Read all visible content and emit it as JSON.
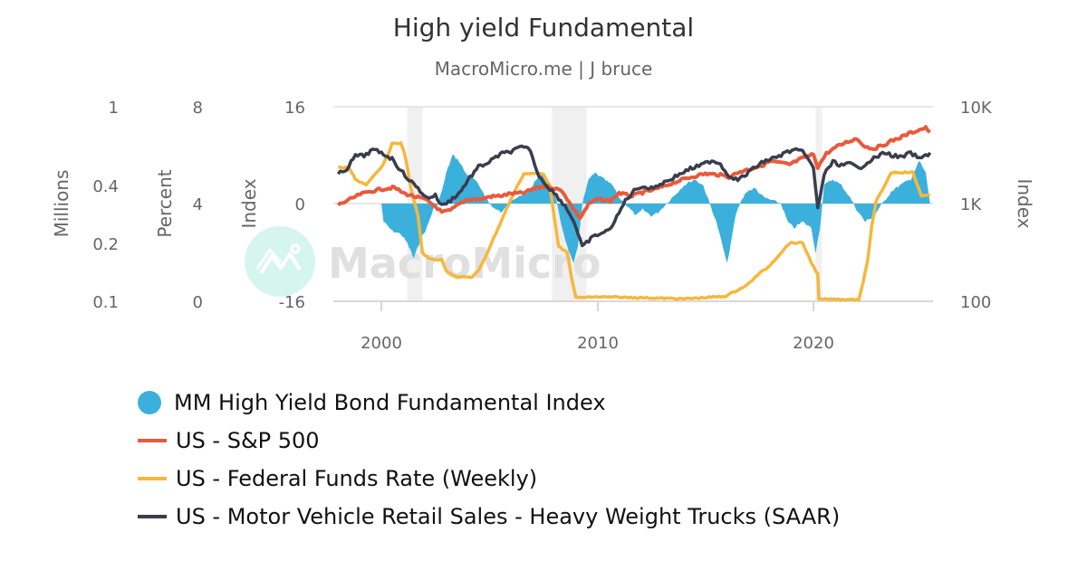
{
  "header": {
    "title": "High yield Fundamental",
    "subtitle": "MacroMicro.me | J bruce"
  },
  "watermark": {
    "text": "MacroMicro"
  },
  "axes": {
    "left1": {
      "title": "Millions",
      "ticks": [
        "1",
        "0.4",
        "0.2",
        "0.1"
      ]
    },
    "left2": {
      "title": "Percent",
      "ticks": [
        "8",
        "4",
        "0"
      ]
    },
    "left3": {
      "title": "Index",
      "ticks": [
        "16",
        "0",
        "-16"
      ]
    },
    "right": {
      "title": "Index",
      "ticks": [
        "10K",
        "1K",
        "100"
      ]
    },
    "x": {
      "ticks": [
        "2000",
        "2010",
        "2020"
      ]
    }
  },
  "legend": {
    "items": [
      {
        "label": "MM High Yield Bond Fundamental Index",
        "color": "#3cb0dc",
        "type": "dot"
      },
      {
        "label": "US - S&P 500",
        "color": "#e85a3c",
        "type": "line"
      },
      {
        "label": "US - Federal Funds Rate (Weekly)",
        "color": "#f5b83c",
        "type": "line"
      },
      {
        "label": "US - Motor Vehicle Retail Sales - Heavy Weight Trucks (SAAR)",
        "color": "#3a3d4d",
        "type": "line"
      }
    ]
  },
  "chart_data": {
    "type": "line",
    "title": "High yield Fundamental",
    "subtitle": "MacroMicro.me | J bruce",
    "xlabel": "",
    "x_range": [
      1998.0,
      2025.5
    ],
    "x_ticks": [
      2000,
      2010,
      2020
    ],
    "recession_bands": [
      [
        2001.2,
        2001.9
      ],
      [
        2007.9,
        2009.5
      ],
      [
        2020.1,
        2020.4
      ]
    ],
    "legend_position": "bottom",
    "grid": "horizontal",
    "series": [
      {
        "name": "MM High Yield Bond Fundamental Index",
        "type": "area",
        "color": "#3cb0dc",
        "axis": "Index (-16 to 16)",
        "ylim": [
          -16,
          16
        ],
        "points": [
          [
            2000.0,
            0
          ],
          [
            2000.1,
            -3
          ],
          [
            2000.5,
            -4.5
          ],
          [
            2000.9,
            -5
          ],
          [
            2001.2,
            -6.5
          ],
          [
            2001.5,
            -9
          ],
          [
            2001.8,
            -6
          ],
          [
            2002.1,
            -4
          ],
          [
            2002.4,
            -1
          ],
          [
            2002.6,
            0
          ],
          [
            2002.8,
            2
          ],
          [
            2003.0,
            5
          ],
          [
            2003.3,
            8
          ],
          [
            2003.6,
            7
          ],
          [
            2003.9,
            5
          ],
          [
            2004.3,
            4
          ],
          [
            2004.7,
            2
          ],
          [
            2005.0,
            0
          ],
          [
            2005.3,
            -1
          ],
          [
            2005.6,
            -1.5
          ],
          [
            2005.9,
            0.5
          ],
          [
            2006.3,
            1
          ],
          [
            2006.7,
            1.5
          ],
          [
            2007.0,
            3
          ],
          [
            2007.4,
            5
          ],
          [
            2007.7,
            4
          ],
          [
            2008.0,
            2
          ],
          [
            2008.3,
            -3
          ],
          [
            2008.6,
            -7
          ],
          [
            2008.9,
            -10
          ],
          [
            2009.1,
            -7
          ],
          [
            2009.3,
            0
          ],
          [
            2009.6,
            4
          ],
          [
            2009.9,
            5
          ],
          [
            2010.3,
            4
          ],
          [
            2010.7,
            3
          ],
          [
            2011.0,
            1
          ],
          [
            2011.4,
            -0.5
          ],
          [
            2011.8,
            -2
          ],
          [
            2012.1,
            -1
          ],
          [
            2012.5,
            -2
          ],
          [
            2012.8,
            -1.5
          ],
          [
            2013.2,
            0
          ],
          [
            2013.6,
            1.5
          ],
          [
            2014.0,
            3
          ],
          [
            2014.5,
            4
          ],
          [
            2014.9,
            3
          ],
          [
            2015.2,
            0
          ],
          [
            2015.5,
            -3
          ],
          [
            2015.8,
            -7
          ],
          [
            2016.0,
            -10
          ],
          [
            2016.2,
            -6
          ],
          [
            2016.4,
            -2
          ],
          [
            2016.6,
            0
          ],
          [
            2016.9,
            2
          ],
          [
            2017.3,
            2.5
          ],
          [
            2017.7,
            1
          ],
          [
            2018.1,
            0.5
          ],
          [
            2018.5,
            0
          ],
          [
            2018.8,
            -3
          ],
          [
            2019.1,
            -4
          ],
          [
            2019.5,
            -3
          ],
          [
            2019.9,
            -4
          ],
          [
            2020.1,
            -8
          ],
          [
            2020.3,
            -4
          ],
          [
            2020.5,
            3
          ],
          [
            2020.9,
            4
          ],
          [
            2021.3,
            3
          ],
          [
            2021.7,
            1
          ],
          [
            2022.0,
            -1
          ],
          [
            2022.4,
            -3
          ],
          [
            2022.8,
            -2
          ],
          [
            2023.2,
            0
          ],
          [
            2023.6,
            2
          ],
          [
            2024.0,
            3
          ],
          [
            2024.5,
            4
          ],
          [
            2024.9,
            7
          ],
          [
            2025.2,
            5
          ],
          [
            2025.4,
            0
          ]
        ]
      },
      {
        "name": "US - S&P 500",
        "type": "line",
        "color": "#e85a3c",
        "axis": "Index (log, 100 to 10K)",
        "ylim": [
          100,
          10000
        ],
        "points": [
          [
            1998.0,
            980
          ],
          [
            1998.5,
            1100
          ],
          [
            1999.0,
            1250
          ],
          [
            1999.5,
            1350
          ],
          [
            2000.0,
            1420
          ],
          [
            2000.6,
            1480
          ],
          [
            2001.0,
            1300
          ],
          [
            2001.5,
            1200
          ],
          [
            2002.0,
            1120
          ],
          [
            2002.5,
            950
          ],
          [
            2002.8,
            820
          ],
          [
            2003.2,
            860
          ],
          [
            2003.6,
            1000
          ],
          [
            2004.0,
            1120
          ],
          [
            2004.6,
            1120
          ],
          [
            2005.0,
            1190
          ],
          [
            2005.6,
            1220
          ],
          [
            2006.0,
            1280
          ],
          [
            2006.6,
            1300
          ],
          [
            2007.0,
            1420
          ],
          [
            2007.5,
            1520
          ],
          [
            2007.9,
            1480
          ],
          [
            2008.4,
            1350
          ],
          [
            2008.8,
            950
          ],
          [
            2009.2,
            720
          ],
          [
            2009.6,
            1000
          ],
          [
            2010.0,
            1120
          ],
          [
            2010.6,
            1080
          ],
          [
            2011.0,
            1300
          ],
          [
            2011.6,
            1200
          ],
          [
            2012.0,
            1300
          ],
          [
            2012.6,
            1400
          ],
          [
            2013.0,
            1500
          ],
          [
            2013.6,
            1680
          ],
          [
            2014.0,
            1800
          ],
          [
            2014.6,
            1960
          ],
          [
            2015.0,
            2050
          ],
          [
            2015.7,
            1990
          ],
          [
            2016.1,
            1900
          ],
          [
            2016.6,
            2150
          ],
          [
            2017.0,
            2280
          ],
          [
            2017.6,
            2480
          ],
          [
            2018.0,
            2750
          ],
          [
            2018.9,
            2550
          ],
          [
            2019.4,
            2900
          ],
          [
            2020.0,
            3250
          ],
          [
            2020.2,
            2400
          ],
          [
            2020.6,
            3300
          ],
          [
            2021.0,
            3800
          ],
          [
            2021.5,
            4300
          ],
          [
            2022.0,
            4700
          ],
          [
            2022.4,
            3900
          ],
          [
            2022.8,
            3700
          ],
          [
            2023.2,
            4000
          ],
          [
            2023.6,
            4450
          ],
          [
            2024.0,
            4800
          ],
          [
            2024.5,
            5400
          ],
          [
            2025.0,
            5900
          ],
          [
            2025.2,
            6050
          ],
          [
            2025.4,
            5500
          ]
        ]
      },
      {
        "name": "US - Federal Funds Rate (Weekly)",
        "type": "line",
        "color": "#f5b83c",
        "axis": "Percent (0 to 8)",
        "ylim": [
          0,
          8
        ],
        "points": [
          [
            1998.0,
            5.5
          ],
          [
            1998.5,
            5.5
          ],
          [
            1998.8,
            5.0
          ],
          [
            1999.3,
            4.8
          ],
          [
            1999.7,
            5.2
          ],
          [
            2000.0,
            5.5
          ],
          [
            2000.3,
            6.0
          ],
          [
            2000.5,
            6.5
          ],
          [
            2000.9,
            6.5
          ],
          [
            2001.1,
            6.0
          ],
          [
            2001.4,
            4.5
          ],
          [
            2001.7,
            3.5
          ],
          [
            2001.9,
            2.0
          ],
          [
            2002.2,
            1.75
          ],
          [
            2002.8,
            1.7
          ],
          [
            2003.0,
            1.25
          ],
          [
            2003.5,
            1.0
          ],
          [
            2004.2,
            1.0
          ],
          [
            2004.5,
            1.25
          ],
          [
            2004.9,
            2.0
          ],
          [
            2005.4,
            3.0
          ],
          [
            2005.9,
            4.0
          ],
          [
            2006.3,
            4.75
          ],
          [
            2006.6,
            5.25
          ],
          [
            2007.5,
            5.25
          ],
          [
            2007.8,
            4.75
          ],
          [
            2008.0,
            3.5
          ],
          [
            2008.2,
            2.25
          ],
          [
            2008.6,
            2.0
          ],
          [
            2008.8,
            1.0
          ],
          [
            2009.0,
            0.15
          ],
          [
            2010.0,
            0.18
          ],
          [
            2012.0,
            0.15
          ],
          [
            2014.0,
            0.1
          ],
          [
            2015.9,
            0.2
          ],
          [
            2016.9,
            0.65
          ],
          [
            2017.5,
            1.15
          ],
          [
            2017.9,
            1.4
          ],
          [
            2018.4,
            1.9
          ],
          [
            2018.9,
            2.4
          ],
          [
            2019.5,
            2.4
          ],
          [
            2019.7,
            2.0
          ],
          [
            2019.9,
            1.6
          ],
          [
            2020.2,
            1.1
          ],
          [
            2020.25,
            0.08
          ],
          [
            2021.5,
            0.08
          ],
          [
            2022.1,
            0.08
          ],
          [
            2022.3,
            0.8
          ],
          [
            2022.5,
            1.6
          ],
          [
            2022.7,
            3.1
          ],
          [
            2022.9,
            4.1
          ],
          [
            2023.2,
            4.6
          ],
          [
            2023.6,
            5.3
          ],
          [
            2024.6,
            5.3
          ],
          [
            2024.8,
            4.8
          ],
          [
            2025.0,
            4.35
          ],
          [
            2025.4,
            4.35
          ]
        ]
      },
      {
        "name": "US - Motor Vehicle Retail Sales - Heavy Weight Trucks (SAAR)",
        "type": "line",
        "color": "#3a3d4d",
        "axis": "Millions (log, 0.1 to 1)",
        "ylim": [
          0.1,
          1
        ],
        "points": [
          [
            1998.0,
            0.45
          ],
          [
            1998.4,
            0.48
          ],
          [
            1998.8,
            0.56
          ],
          [
            1999.2,
            0.56
          ],
          [
            1999.6,
            0.6
          ],
          [
            2000.0,
            0.58
          ],
          [
            2000.5,
            0.54
          ],
          [
            2000.9,
            0.47
          ],
          [
            2001.3,
            0.42
          ],
          [
            2001.8,
            0.37
          ],
          [
            2002.1,
            0.34
          ],
          [
            2002.5,
            0.35
          ],
          [
            2002.8,
            0.31
          ],
          [
            2003.2,
            0.33
          ],
          [
            2003.7,
            0.37
          ],
          [
            2004.0,
            0.42
          ],
          [
            2004.5,
            0.49
          ],
          [
            2005.0,
            0.52
          ],
          [
            2005.5,
            0.57
          ],
          [
            2006.0,
            0.59
          ],
          [
            2006.5,
            0.62
          ],
          [
            2006.9,
            0.6
          ],
          [
            2007.2,
            0.46
          ],
          [
            2007.6,
            0.4
          ],
          [
            2008.0,
            0.36
          ],
          [
            2008.5,
            0.31
          ],
          [
            2008.9,
            0.26
          ],
          [
            2009.3,
            0.19
          ],
          [
            2009.7,
            0.21
          ],
          [
            2010.0,
            0.22
          ],
          [
            2010.5,
            0.23
          ],
          [
            2010.9,
            0.27
          ],
          [
            2011.3,
            0.33
          ],
          [
            2011.7,
            0.37
          ],
          [
            2012.0,
            0.39
          ],
          [
            2012.5,
            0.38
          ],
          [
            2012.9,
            0.4
          ],
          [
            2013.3,
            0.42
          ],
          [
            2013.8,
            0.45
          ],
          [
            2014.3,
            0.48
          ],
          [
            2014.8,
            0.5
          ],
          [
            2015.3,
            0.53
          ],
          [
            2015.7,
            0.51
          ],
          [
            2016.0,
            0.45
          ],
          [
            2016.5,
            0.42
          ],
          [
            2016.9,
            0.45
          ],
          [
            2017.3,
            0.49
          ],
          [
            2017.8,
            0.53
          ],
          [
            2018.3,
            0.55
          ],
          [
            2018.7,
            0.58
          ],
          [
            2019.1,
            0.6
          ],
          [
            2019.6,
            0.58
          ],
          [
            2020.0,
            0.48
          ],
          [
            2020.2,
            0.3
          ],
          [
            2020.5,
            0.45
          ],
          [
            2020.9,
            0.52
          ],
          [
            2021.3,
            0.5
          ],
          [
            2021.7,
            0.51
          ],
          [
            2022.1,
            0.48
          ],
          [
            2022.5,
            0.52
          ],
          [
            2022.9,
            0.55
          ],
          [
            2023.3,
            0.58
          ],
          [
            2023.7,
            0.56
          ],
          [
            2024.1,
            0.55
          ],
          [
            2024.5,
            0.58
          ],
          [
            2024.9,
            0.54
          ],
          [
            2025.2,
            0.56
          ],
          [
            2025.4,
            0.58
          ]
        ]
      }
    ]
  }
}
